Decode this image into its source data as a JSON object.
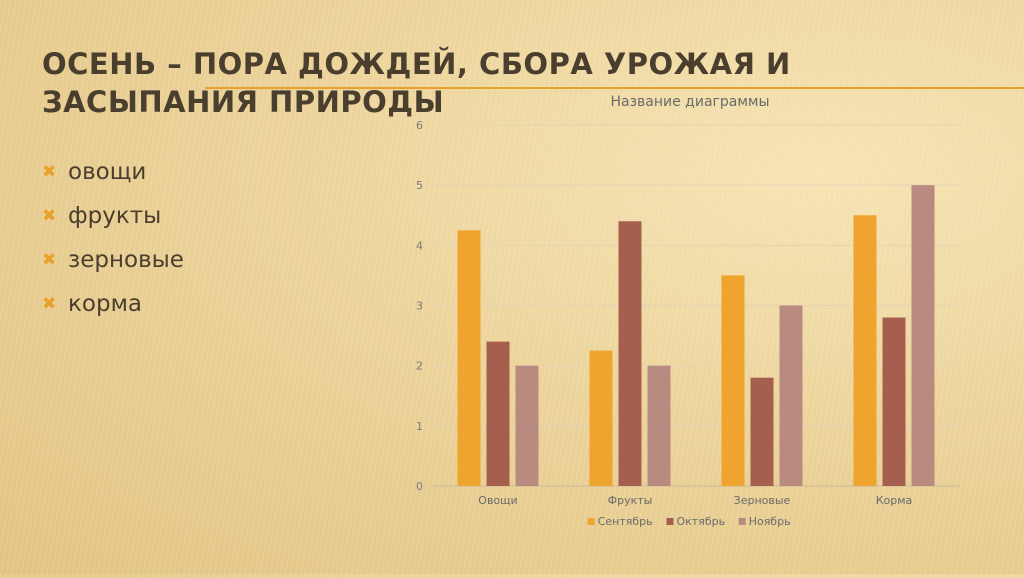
{
  "slide": {
    "title": "ОСЕНЬ – ПОРА ДОЖДЕЙ, СБОРА УРОЖАЯ И ЗАСЫПАНИЯ ПРИРОДЫ",
    "bullets": [
      "овощи",
      "фрукты",
      "зерновые",
      "корма"
    ],
    "bullet_icon": "cross-mark-icon",
    "accent_color": "#e7a22d"
  },
  "chart_data": {
    "type": "bar",
    "title": "Название диаграммы",
    "categories": [
      "Овощи",
      "Фрукты",
      "Зерновые",
      "Корма"
    ],
    "series": [
      {
        "name": "Сентябрь",
        "values": [
          4.25,
          2.25,
          3.5,
          4.5
        ],
        "color": "#eea42f"
      },
      {
        "name": "Октябрь",
        "values": [
          2.4,
          4.4,
          1.8,
          2.8
        ],
        "color": "#a65f4e"
      },
      {
        "name": "Ноябрь",
        "values": [
          2.0,
          2.0,
          3.0,
          5.0
        ],
        "color": "#b88a80"
      }
    ],
    "ylim": [
      0,
      6
    ],
    "yticks": [
      "0",
      "1",
      "2",
      "3",
      "4",
      "5",
      "6"
    ],
    "grid": true,
    "legend_position": "bottom"
  }
}
